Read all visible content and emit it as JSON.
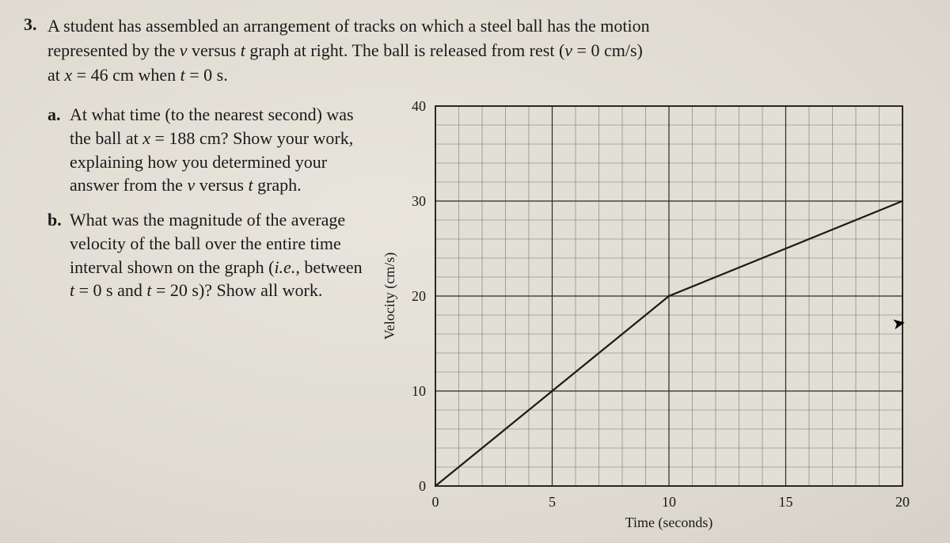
{
  "question_number": "3.",
  "intro_line1": "A student has assembled an arrangement of tracks on which a steel ball has the motion",
  "intro_line2_a": "represented by the ",
  "intro_line2_v": "v",
  "intro_line2_b": " versus ",
  "intro_line2_t": "t",
  "intro_line2_c": " graph at right.  The ball is released from rest (",
  "intro_line2_d": "v",
  "intro_line2_e": " = 0 cm/s)",
  "intro_line3_a": "at ",
  "intro_line3_x": "x",
  "intro_line3_b": " = 46 cm when ",
  "intro_line3_t": "t",
  "intro_line3_c": " = 0 s.",
  "part_a_letter": "a.",
  "part_a_1": "At what time (to the nearest second) was the ball at",
  "part_a_2a": "x",
  "part_a_2b": " = 188 cm?  Show your work, explaining how you determined your answer from the ",
  "part_a_2c": "v",
  "part_a_2d": " versus ",
  "part_a_2e": "t",
  "part_a_2f": " graph.",
  "part_b_letter": "b.",
  "part_b_1": "What was the magnitude of the average velocity of the ball over the entire time interval shown on the graph (",
  "part_b_2": "i.e.",
  "part_b_3": ", between ",
  "part_b_4": "t",
  "part_b_5": " = 0 s and ",
  "part_b_6": "t",
  "part_b_7": " = 20 s)?  Show all work.",
  "chart": {
    "type": "line",
    "xlim": [
      0,
      20
    ],
    "ylim": [
      0,
      40
    ],
    "xtick_major": [
      0,
      5,
      10,
      15,
      20
    ],
    "ytick_major": [
      0,
      10,
      20,
      30,
      40
    ],
    "xtick_minor_step": 1,
    "ytick_minor_step": 2,
    "xlabel": "Time (seconds)",
    "ylabel": "Velocity (cm/s)",
    "label_fontsize": 18,
    "tick_fontsize": 18,
    "background_color": "#e2dfd4",
    "grid_major_color": "#2a2a2a",
    "grid_minor_color": "#7a766c",
    "border_color": "#1a1a1a",
    "line_color": "#1a1a1a",
    "line_width": 2.2,
    "data": [
      [
        0,
        0
      ],
      [
        10,
        20
      ],
      [
        20,
        30
      ]
    ]
  }
}
